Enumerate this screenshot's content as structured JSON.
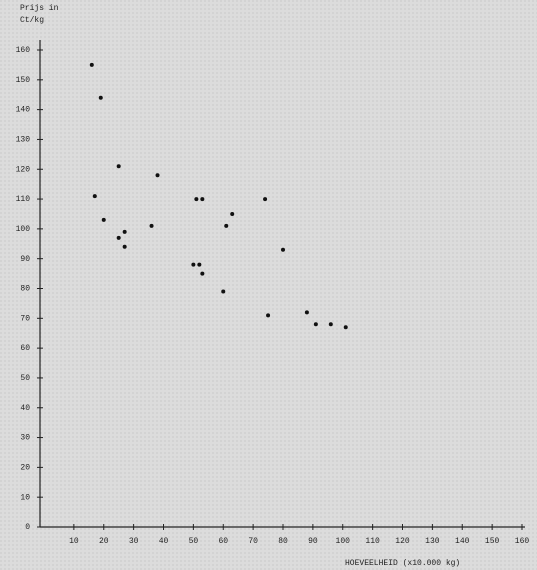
{
  "chart_data": {
    "type": "scatter",
    "y_label": [
      "Prijs in",
      "Ct/kg"
    ],
    "x_label": "HOEVEELHEID (x10.000 kg)",
    "x": [
      16,
      19,
      25,
      17,
      38,
      20,
      51,
      53,
      74,
      27,
      36,
      25,
      27,
      61,
      63,
      80,
      50,
      52,
      53,
      60,
      75,
      88,
      91,
      96,
      101
    ],
    "values": [
      155,
      144,
      121,
      111,
      118,
      103,
      110,
      110,
      110,
      99,
      101,
      97,
      94,
      101,
      105,
      93,
      88,
      88,
      85,
      79,
      71,
      72,
      68,
      68,
      67
    ],
    "color": "#111111",
    "xlim": [
      0,
      160
    ],
    "xticks": [
      10,
      20,
      30,
      40,
      50,
      60,
      70,
      80,
      90,
      100,
      110,
      120,
      130,
      140,
      150,
      160
    ],
    "ylim": [
      0,
      160
    ],
    "yticks": [
      0,
      10,
      20,
      30,
      40,
      50,
      60,
      70,
      80,
      90,
      100,
      110,
      120,
      130,
      140,
      150,
      160
    ]
  }
}
